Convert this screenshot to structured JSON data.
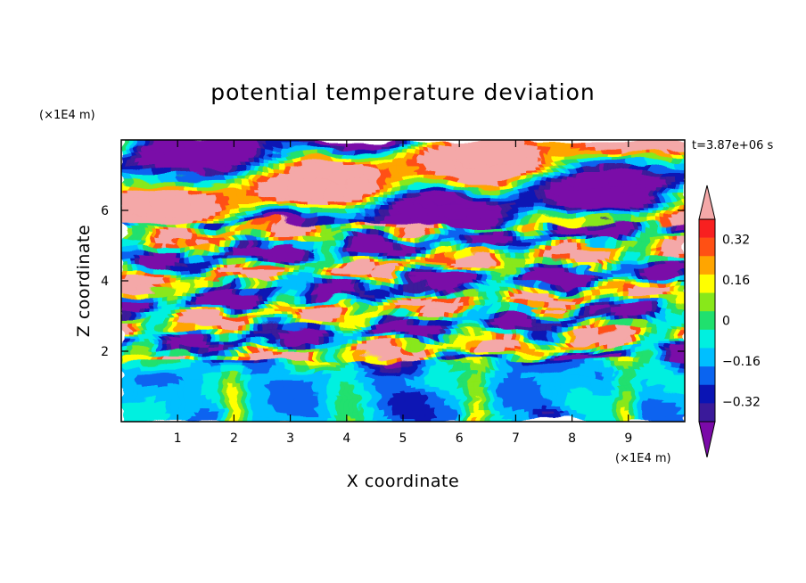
{
  "chart_data": {
    "type": "heatmap",
    "title": "potential temperature deviation",
    "xlabel": "X coordinate",
    "ylabel": "Z coordinate",
    "x_unit": "(×1E4 m)",
    "y_unit": "(×1E4 m)",
    "time_label": "t=3.87e+06 s",
    "xlim": [
      0,
      10
    ],
    "ylim": [
      0,
      8
    ],
    "x_ticks": [
      "1",
      "2",
      "3",
      "4",
      "5",
      "6",
      "7",
      "8",
      "9"
    ],
    "y_ticks": [
      "2",
      "4",
      "6"
    ],
    "grid": false,
    "colorbar": {
      "placement": "right",
      "labels": [
        "0.32",
        "0.16",
        "0",
        "−0.16",
        "−0.32"
      ],
      "label_values": [
        0.32,
        0.16,
        0,
        -0.16,
        -0.32
      ],
      "levels": [
        -0.4,
        -0.32,
        -0.24,
        -0.16,
        -0.08,
        0,
        0.08,
        0.16,
        0.24,
        0.32,
        0.4
      ],
      "colors": [
        "#7a0aa8",
        "#3a1a9a",
        "#0a14b4",
        "#0a64f0",
        "#00bfff",
        "#00f0e0",
        "#20e06e",
        "#88e81a",
        "#ffff00",
        "#ffa500",
        "#ff5014",
        "#f82020",
        "#f4a8a8"
      ]
    },
    "layers": [
      {
        "z_range": [
          0,
          1.8
        ],
        "description_values": "near-zero to negative deviations with positive plumes at x≈2, 6.3, 9",
        "dominant_value": -0.1
      },
      {
        "z_range": [
          1.8,
          5.5
        ],
        "dominant_value": 0.0,
        "pattern": "alternating strong positive and negative bands"
      },
      {
        "z_range": [
          5.5,
          8
        ],
        "dominant_value": 0.0,
        "pattern": "large patches of >0.4 and <-0.4"
      }
    ]
  }
}
